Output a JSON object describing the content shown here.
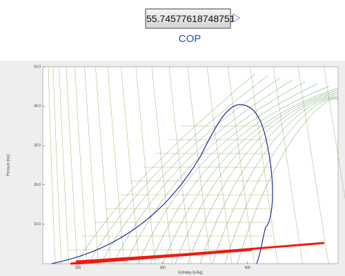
{
  "display": {
    "value": "55.74577618748751",
    "label": "COP"
  },
  "chart": {
    "x_label": "Enthalpy [kJ/kg]",
    "y_label": "Pressure [bar]",
    "xlim": [
      158.5,
      507
    ],
    "ylim": [
      0,
      50
    ],
    "xticks": [
      200,
      300,
      400
    ],
    "yticks": [
      {
        "value": 10,
        "label": "10.0"
      },
      {
        "value": 20,
        "label": "20.0"
      },
      {
        "value": 30,
        "label": "30.0"
      },
      {
        "value": 40,
        "label": "40.0"
      },
      {
        "value": 50,
        "label": "50.0"
      }
    ]
  }
}
